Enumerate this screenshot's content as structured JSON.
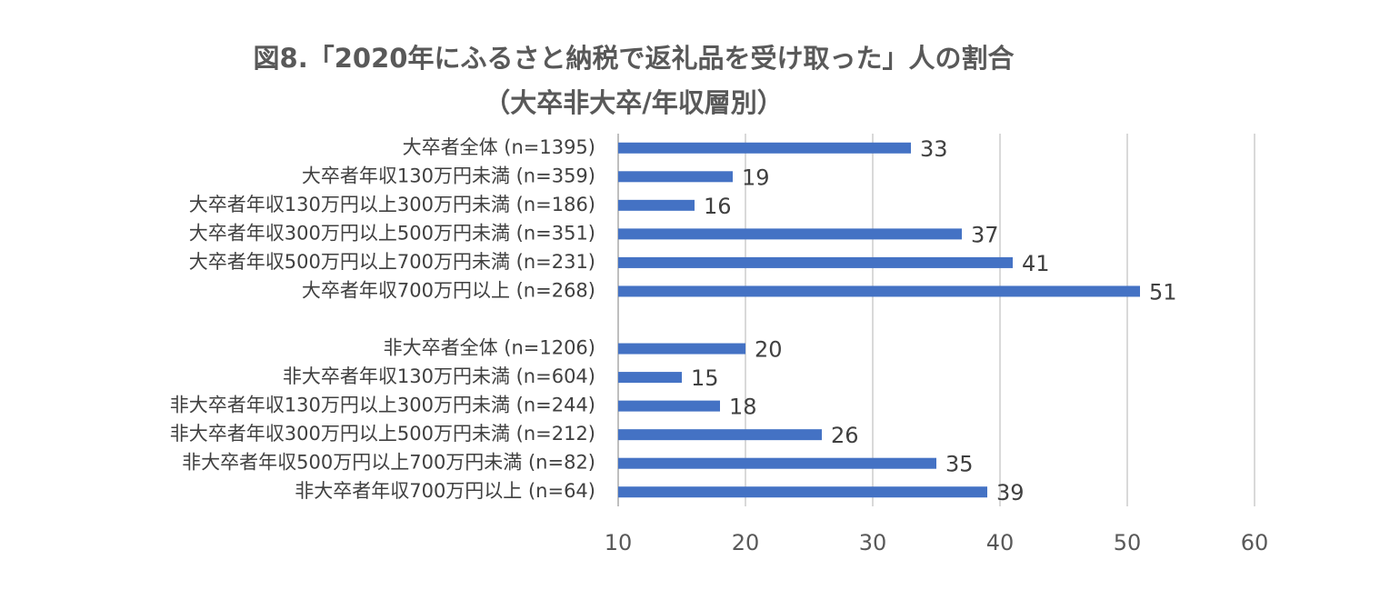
{
  "chart_data": {
    "type": "barh",
    "title": "図8.「2020年にふるさと納税で返礼品を受け取った」人の割合",
    "subtitle": "（大卒非大卒/年収層別）",
    "categories": [
      "大卒者全体 (n=1395)",
      "大卒者年収130万円未満 (n=359)",
      "大卒者年収130万円以上300万円未満 (n=186)",
      "大卒者年収300万円以上500万円未満 (n=351)",
      "大卒者年収500万円以上700万円未満 (n=231)",
      "大卒者年収700万円以上 (n=268)",
      null,
      "非大卒者全体 (n=1206)",
      "非大卒者年収130万円未満 (n=604)",
      "非大卒者年収130万円以上300万円未満 (n=244)",
      "非大卒者年収300万円以上500万円未満 (n=212)",
      "非大卒者年収500万円以上700万円未満 (n=82)",
      "非大卒者年収700万円以上 (n=64)"
    ],
    "values": [
      33,
      19,
      16,
      37,
      41,
      51,
      null,
      20,
      15,
      18,
      26,
      35,
      39
    ],
    "color": "#4472c4",
    "xlim": [
      10,
      60
    ],
    "xticks": [
      10,
      20,
      30,
      40,
      50,
      60
    ],
    "grid": true
  }
}
